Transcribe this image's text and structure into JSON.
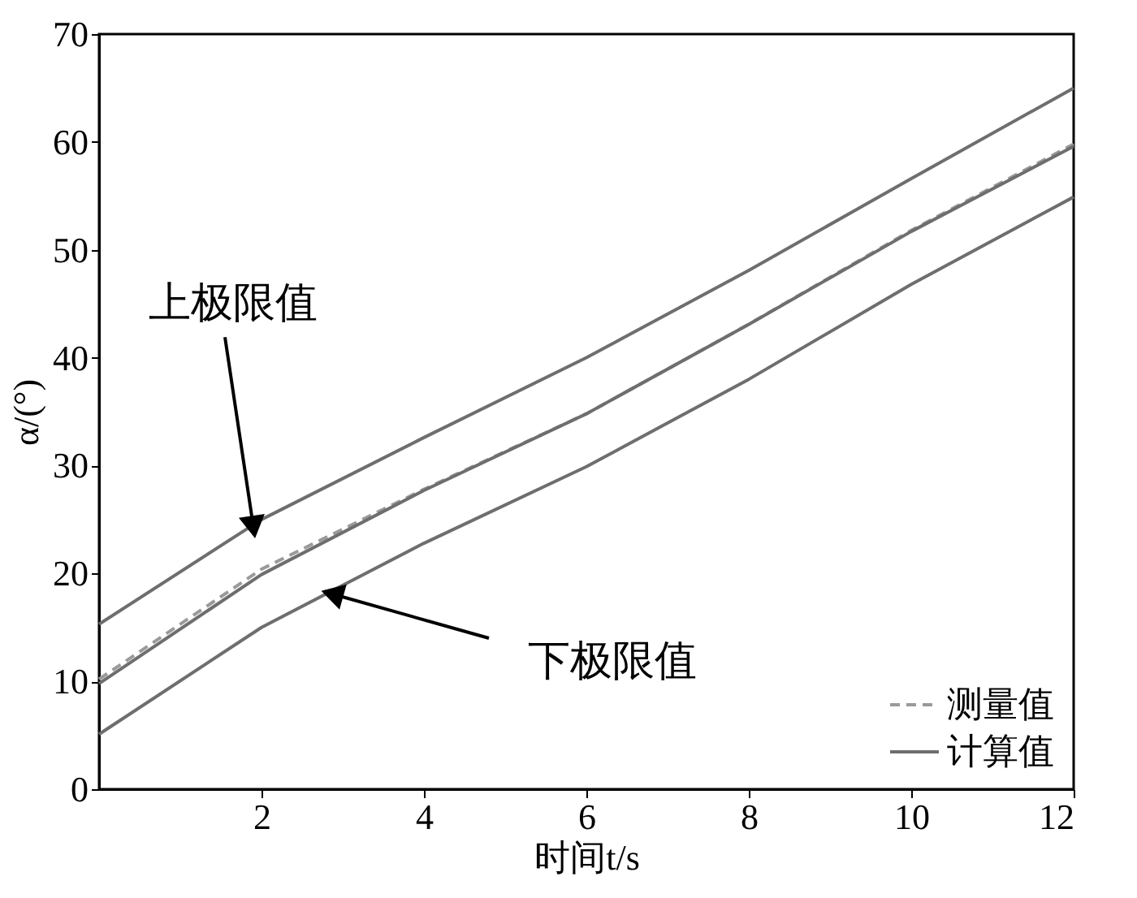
{
  "chart_data": {
    "type": "line",
    "xlabel": "时间t/s",
    "ylabel": "α/(°)",
    "x": [
      0,
      2,
      4,
      6,
      8,
      10,
      12
    ],
    "series": [
      {
        "name": "测量值",
        "color": "#9a9a9a",
        "line_style": "dashed",
        "values": [
          10.2,
          20.4,
          27.8,
          34.8,
          43.1,
          51.8,
          59.8
        ]
      },
      {
        "name": "计算值",
        "color": "#6e6e6e",
        "line_style": "solid",
        "values": [
          9.8,
          19.9,
          27.7,
          34.8,
          43.1,
          51.7,
          59.6
        ]
      },
      {
        "color": "#6e6e6e",
        "line_style": "solid",
        "values": [
          15.3,
          25.0,
          32.6,
          40.0,
          48.1,
          56.6,
          65.0
        ]
      },
      {
        "color": "#6e6e6e",
        "line_style": "solid",
        "values": [
          5.1,
          15.0,
          22.8,
          29.9,
          38.0,
          46.8,
          54.9
        ]
      }
    ],
    "annotations": [
      {
        "text": "上极限值",
        "x": 1.9,
        "y": 24.3
      },
      {
        "text": "下极限值",
        "x": 2.87,
        "y": 18.1
      }
    ],
    "xlim": [
      0,
      12
    ],
    "xticks": [
      2,
      4,
      6,
      8,
      10,
      12
    ],
    "ylim": [
      0,
      70
    ],
    "yticks": [
      0,
      10,
      20,
      30,
      40,
      50,
      60,
      70
    ],
    "grid": false,
    "legend": "bottom right"
  }
}
